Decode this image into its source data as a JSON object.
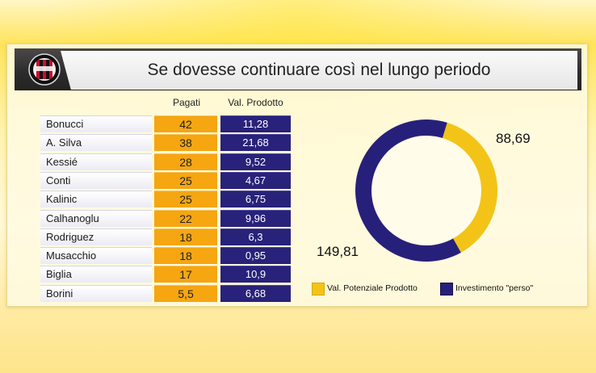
{
  "title": "Se dovesse continuare così nel lungo periodo",
  "chart_data": [
    {
      "type": "table",
      "columns": [
        "",
        "Pagati",
        "Val. Prodotto"
      ],
      "rows": [
        {
          "name": "Bonucci",
          "paid": "42",
          "val": "11,28"
        },
        {
          "name": "A. Silva",
          "paid": "38",
          "val": "21,68"
        },
        {
          "name": "Kessié",
          "paid": "28",
          "val": "9,52"
        },
        {
          "name": "Conti",
          "paid": "25",
          "val": "4,67"
        },
        {
          "name": "Kalinic",
          "paid": "25",
          "val": "6,75"
        },
        {
          "name": "Calhanoglu",
          "paid": "22",
          "val": "9,96"
        },
        {
          "name": "Rodriguez",
          "paid": "18",
          "val": "6,3"
        },
        {
          "name": "Musacchio",
          "paid": "18",
          "val": "0,95"
        },
        {
          "name": "Biglia",
          "paid": "17",
          "val": "10,9"
        },
        {
          "name": "Borini",
          "paid": "5,5",
          "val": "6,68"
        }
      ]
    },
    {
      "type": "pie",
      "donut": true,
      "slices": [
        {
          "name": "Val. Potenziale Prodotto",
          "value": 88.69,
          "label": "88,69",
          "color": "#f3c417"
        },
        {
          "name": "Investimento \"perso\"",
          "value": 149.81,
          "label": "149,81",
          "color": "#27207a"
        }
      ],
      "legend": "bottom"
    }
  ]
}
